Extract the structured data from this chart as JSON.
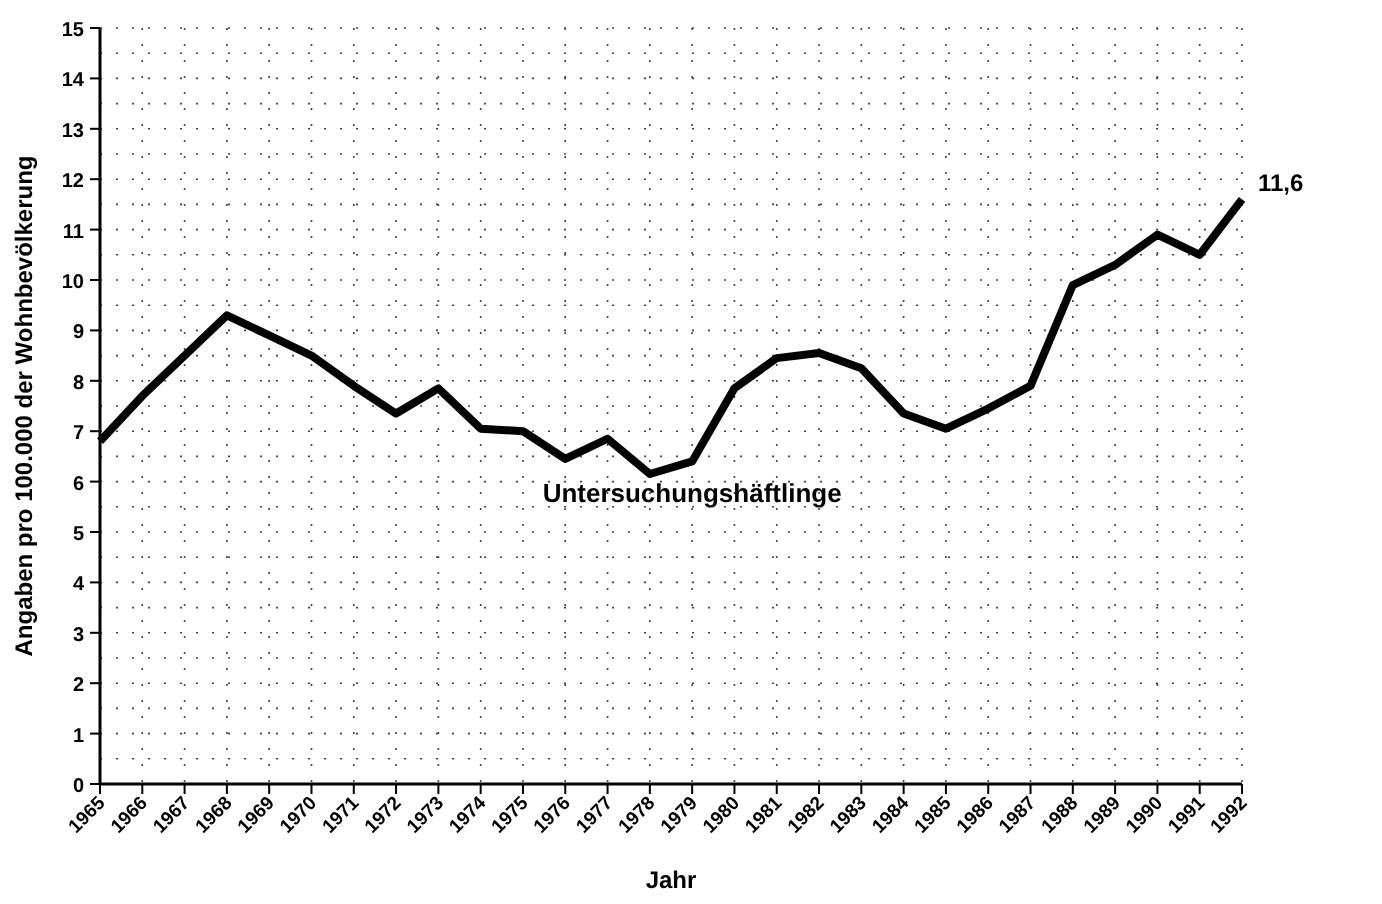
{
  "chart_data": {
    "type": "line",
    "xlabel": "Jahr",
    "ylabel": "Angaben pro 100.000 der Wohnbevölkerung",
    "categories": [
      "1965",
      "1966",
      "1967",
      "1968",
      "1969",
      "1970",
      "1971",
      "1972",
      "1973",
      "1974",
      "1975",
      "1976",
      "1977",
      "1978",
      "1979",
      "1980",
      "1981",
      "1982",
      "1983",
      "1984",
      "1985",
      "1986",
      "1987",
      "1988",
      "1989",
      "1990",
      "1991",
      "1992"
    ],
    "series": [
      {
        "name": "Untersuchungshäftlinge",
        "color": "#000000",
        "values": [
          6.8,
          7.7,
          8.5,
          9.3,
          8.9,
          8.5,
          7.9,
          7.35,
          7.85,
          7.05,
          7.0,
          6.45,
          6.85,
          6.15,
          6.4,
          7.85,
          8.45,
          8.55,
          8.25,
          7.35,
          7.05,
          7.45,
          7.9,
          9.9,
          10.3,
          10.9,
          10.5,
          11.6
        ],
        "value_labels": [
          null,
          null,
          null,
          null,
          null,
          null,
          null,
          null,
          null,
          null,
          null,
          null,
          null,
          null,
          null,
          null,
          null,
          null,
          null,
          null,
          null,
          null,
          null,
          null,
          null,
          null,
          null,
          "11,6"
        ]
      }
    ],
    "ylim": [
      0,
      15
    ],
    "yticks": [
      0,
      1,
      2,
      3,
      4,
      5,
      6,
      7,
      8,
      9,
      10,
      11,
      12,
      13,
      14,
      15
    ],
    "grid": true,
    "marker": "none",
    "line_style": "solid"
  }
}
